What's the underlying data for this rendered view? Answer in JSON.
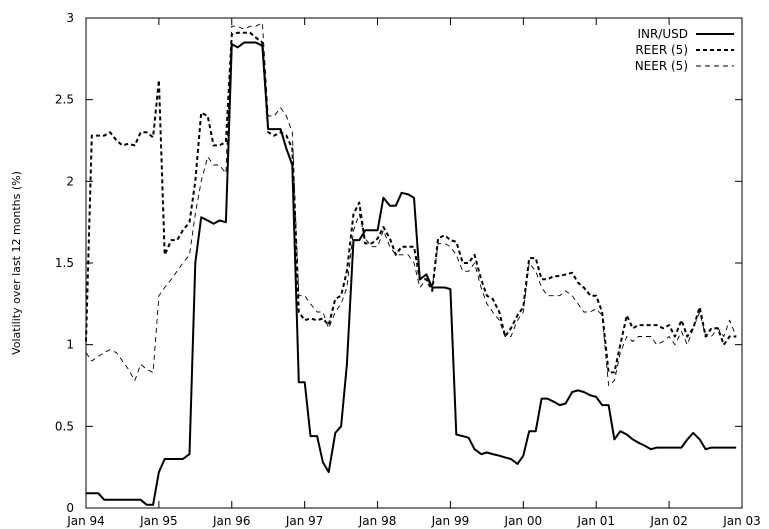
{
  "chart_data": {
    "type": "line",
    "title": "",
    "xlabel": "",
    "ylabel": "Volatility over last 12 months (%)",
    "x_tick_labels": [
      "Jan 94",
      "Jan 95",
      "Jan 96",
      "Jan 97",
      "Jan 98",
      "Jan 99",
      "Jan 00",
      "Jan 01",
      "Jan 02",
      "Jan 03"
    ],
    "xlim": [
      1994.0,
      2003.0
    ],
    "y_tick_labels": [
      "0",
      "0.5",
      "1",
      "1.5",
      "2",
      "2.5",
      "3"
    ],
    "ylim": [
      0,
      3
    ],
    "grid": false,
    "legend_position": "top-right",
    "series": [
      {
        "name": "INR/USD",
        "style": "solid",
        "x": [
          1994.0,
          1994.08,
          1994.17,
          1994.25,
          1994.33,
          1994.42,
          1994.5,
          1994.58,
          1994.67,
          1994.75,
          1994.83,
          1994.92,
          1995.0,
          1995.08,
          1995.17,
          1995.25,
          1995.33,
          1995.42,
          1995.5,
          1995.58,
          1995.67,
          1995.75,
          1995.83,
          1995.92,
          1996.0,
          1996.08,
          1996.17,
          1996.25,
          1996.33,
          1996.42,
          1996.5,
          1996.58,
          1996.67,
          1996.75,
          1996.83,
          1996.92,
          1997.0,
          1997.08,
          1997.17,
          1997.25,
          1997.33,
          1997.42,
          1997.5,
          1997.58,
          1997.67,
          1997.75,
          1997.83,
          1997.92,
          1998.0,
          1998.08,
          1998.17,
          1998.25,
          1998.33,
          1998.42,
          1998.5,
          1998.58,
          1998.67,
          1998.75,
          1998.83,
          1998.92,
          1999.0,
          1999.08,
          1999.17,
          1999.25,
          1999.33,
          1999.42,
          1999.5,
          1999.58,
          1999.67,
          1999.75,
          1999.83,
          1999.92,
          2000.0,
          2000.08,
          2000.17,
          2000.25,
          2000.33,
          2000.42,
          2000.5,
          2000.58,
          2000.67,
          2000.75,
          2000.83,
          2000.92,
          2001.0,
          2001.08,
          2001.17,
          2001.25,
          2001.33,
          2001.42,
          2001.5,
          2001.58,
          2001.67,
          2001.75,
          2001.83,
          2001.92,
          2002.0,
          2002.08,
          2002.17,
          2002.25,
          2002.33,
          2002.42,
          2002.5,
          2002.58,
          2002.67,
          2002.75,
          2002.83,
          2002.92
        ],
        "y": [
          0.09,
          0.09,
          0.09,
          0.05,
          0.05,
          0.05,
          0.05,
          0.05,
          0.05,
          0.05,
          0.02,
          0.02,
          0.22,
          0.3,
          0.3,
          0.3,
          0.3,
          0.33,
          1.5,
          1.78,
          1.76,
          1.74,
          1.76,
          1.75,
          2.84,
          2.82,
          2.85,
          2.85,
          2.85,
          2.83,
          2.32,
          2.32,
          2.32,
          2.2,
          2.1,
          0.77,
          0.77,
          0.44,
          0.44,
          0.28,
          0.22,
          0.46,
          0.5,
          0.88,
          1.64,
          1.64,
          1.7,
          1.7,
          1.7,
          1.9,
          1.85,
          1.85,
          1.93,
          1.92,
          1.9,
          1.4,
          1.43,
          1.35,
          1.35,
          1.35,
          1.34,
          0.45,
          0.44,
          0.43,
          0.36,
          0.33,
          0.34,
          0.33,
          0.32,
          0.31,
          0.3,
          0.27,
          0.32,
          0.47,
          0.47,
          0.67,
          0.67,
          0.65,
          0.63,
          0.64,
          0.71,
          0.72,
          0.71,
          0.69,
          0.68,
          0.63,
          0.63,
          0.42,
          0.47,
          0.45,
          0.42,
          0.4,
          0.38,
          0.36,
          0.37,
          0.37,
          0.37,
          0.37,
          0.37,
          0.42,
          0.46,
          0.42,
          0.36,
          0.37,
          0.37,
          0.37,
          0.37,
          0.37
        ],
        "color": "#000000"
      },
      {
        "name": "REER (5)",
        "style": "dashed-bold",
        "x": [
          1994.0,
          1994.08,
          1994.17,
          1994.25,
          1994.33,
          1994.42,
          1994.5,
          1994.58,
          1994.67,
          1994.75,
          1994.83,
          1994.92,
          1995.0,
          1995.08,
          1995.17,
          1995.25,
          1995.33,
          1995.42,
          1995.5,
          1995.58,
          1995.67,
          1995.75,
          1995.83,
          1995.92,
          1996.0,
          1996.08,
          1996.17,
          1996.25,
          1996.33,
          1996.42,
          1996.5,
          1996.58,
          1996.67,
          1996.75,
          1996.83,
          1996.92,
          1997.0,
          1997.08,
          1997.17,
          1997.25,
          1997.33,
          1997.42,
          1997.5,
          1997.58,
          1997.67,
          1997.75,
          1997.83,
          1997.92,
          1998.0,
          1998.08,
          1998.17,
          1998.25,
          1998.33,
          1998.42,
          1998.5,
          1998.58,
          1998.67,
          1998.75,
          1998.83,
          1998.92,
          1999.0,
          1999.08,
          1999.17,
          1999.25,
          1999.33,
          1999.42,
          1999.5,
          1999.58,
          1999.67,
          1999.75,
          1999.83,
          1999.92,
          2000.0,
          2000.08,
          2000.17,
          2000.25,
          2000.33,
          2000.42,
          2000.5,
          2000.58,
          2000.67,
          2000.75,
          2000.83,
          2000.92,
          2001.0,
          2001.08,
          2001.17,
          2001.25,
          2001.33,
          2001.42,
          2001.5,
          2001.58,
          2001.67,
          2001.75,
          2001.83,
          2001.92,
          2002.0,
          2002.08,
          2002.17,
          2002.25,
          2002.33,
          2002.42,
          2002.5,
          2002.58,
          2002.67,
          2002.75,
          2002.83,
          2002.92
        ],
        "y": [
          1.02,
          2.28,
          2.28,
          2.28,
          2.3,
          2.25,
          2.22,
          2.23,
          2.22,
          2.3,
          2.3,
          2.27,
          2.62,
          1.55,
          1.64,
          1.64,
          1.7,
          1.75,
          2.0,
          2.42,
          2.4,
          2.22,
          2.22,
          2.24,
          2.9,
          2.91,
          2.91,
          2.91,
          2.88,
          2.85,
          2.3,
          2.28,
          2.3,
          2.28,
          2.2,
          1.2,
          1.15,
          1.16,
          1.15,
          1.16,
          1.12,
          1.28,
          1.3,
          1.45,
          1.8,
          1.87,
          1.62,
          1.62,
          1.65,
          1.72,
          1.65,
          1.55,
          1.6,
          1.6,
          1.6,
          1.4,
          1.4,
          1.33,
          1.65,
          1.67,
          1.64,
          1.63,
          1.5,
          1.5,
          1.55,
          1.4,
          1.3,
          1.28,
          1.2,
          1.05,
          1.1,
          1.18,
          1.23,
          1.53,
          1.53,
          1.4,
          1.4,
          1.42,
          1.42,
          1.43,
          1.44,
          1.38,
          1.35,
          1.3,
          1.3,
          1.2,
          0.83,
          0.83,
          1.0,
          1.18,
          1.1,
          1.12,
          1.12,
          1.12,
          1.12,
          1.1,
          1.12,
          1.05,
          1.15,
          1.05,
          1.1,
          1.23,
          1.05,
          1.1,
          1.1,
          1.0,
          1.05,
          1.05
        ],
        "color": "#000000"
      },
      {
        "name": "NEER (5)",
        "style": "dashed-thin",
        "x": [
          1994.0,
          1994.08,
          1994.17,
          1994.25,
          1994.33,
          1994.42,
          1994.5,
          1994.58,
          1994.67,
          1994.75,
          1994.83,
          1994.92,
          1995.0,
          1995.08,
          1995.17,
          1995.25,
          1995.33,
          1995.42,
          1995.5,
          1995.58,
          1995.67,
          1995.75,
          1995.83,
          1995.92,
          1996.0,
          1996.08,
          1996.17,
          1996.25,
          1996.33,
          1996.42,
          1996.5,
          1996.58,
          1996.67,
          1996.75,
          1996.83,
          1996.92,
          1997.0,
          1997.08,
          1997.17,
          1997.25,
          1997.33,
          1997.42,
          1997.5,
          1997.58,
          1997.67,
          1997.75,
          1997.83,
          1997.92,
          1998.0,
          1998.08,
          1998.17,
          1998.25,
          1998.33,
          1998.42,
          1998.5,
          1998.58,
          1998.67,
          1998.75,
          1998.83,
          1998.92,
          1999.0,
          1999.08,
          1999.17,
          1999.25,
          1999.33,
          1999.42,
          1999.5,
          1999.58,
          1999.67,
          1999.75,
          1999.83,
          1999.92,
          2000.0,
          2000.08,
          2000.17,
          2000.25,
          2000.33,
          2000.42,
          2000.5,
          2000.58,
          2000.67,
          2000.75,
          2000.83,
          2000.92,
          2001.0,
          2001.08,
          2001.17,
          2001.25,
          2001.33,
          2001.42,
          2001.5,
          2001.58,
          2001.67,
          2001.75,
          2001.83,
          2001.92,
          2002.0,
          2002.08,
          2002.17,
          2002.25,
          2002.33,
          2002.42,
          2002.5,
          2002.58,
          2002.67,
          2002.75,
          2002.83,
          2002.92
        ],
        "y": [
          0.95,
          0.9,
          0.93,
          0.95,
          0.97,
          0.95,
          0.9,
          0.85,
          0.78,
          0.88,
          0.85,
          0.83,
          1.3,
          1.35,
          1.4,
          1.45,
          1.5,
          1.55,
          1.8,
          2.0,
          2.15,
          2.1,
          2.1,
          2.05,
          2.95,
          2.95,
          2.93,
          2.95,
          2.95,
          2.97,
          2.4,
          2.4,
          2.45,
          2.4,
          2.3,
          1.3,
          1.3,
          1.25,
          1.2,
          1.2,
          1.1,
          1.2,
          1.25,
          1.35,
          1.7,
          1.8,
          1.65,
          1.6,
          1.6,
          1.7,
          1.6,
          1.55,
          1.55,
          1.55,
          1.5,
          1.35,
          1.4,
          1.35,
          1.62,
          1.62,
          1.6,
          1.55,
          1.45,
          1.45,
          1.5,
          1.35,
          1.25,
          1.2,
          1.15,
          1.05,
          1.05,
          1.15,
          1.2,
          1.5,
          1.45,
          1.35,
          1.3,
          1.3,
          1.3,
          1.33,
          1.3,
          1.25,
          1.2,
          1.2,
          1.22,
          1.18,
          0.75,
          0.78,
          0.95,
          1.05,
          1.02,
          1.05,
          1.05,
          1.05,
          1.0,
          1.02,
          1.05,
          1.0,
          1.08,
          1.0,
          1.1,
          1.2,
          1.05,
          1.05,
          1.1,
          1.05,
          1.15,
          1.05
        ],
        "color": "#000000"
      }
    ]
  }
}
